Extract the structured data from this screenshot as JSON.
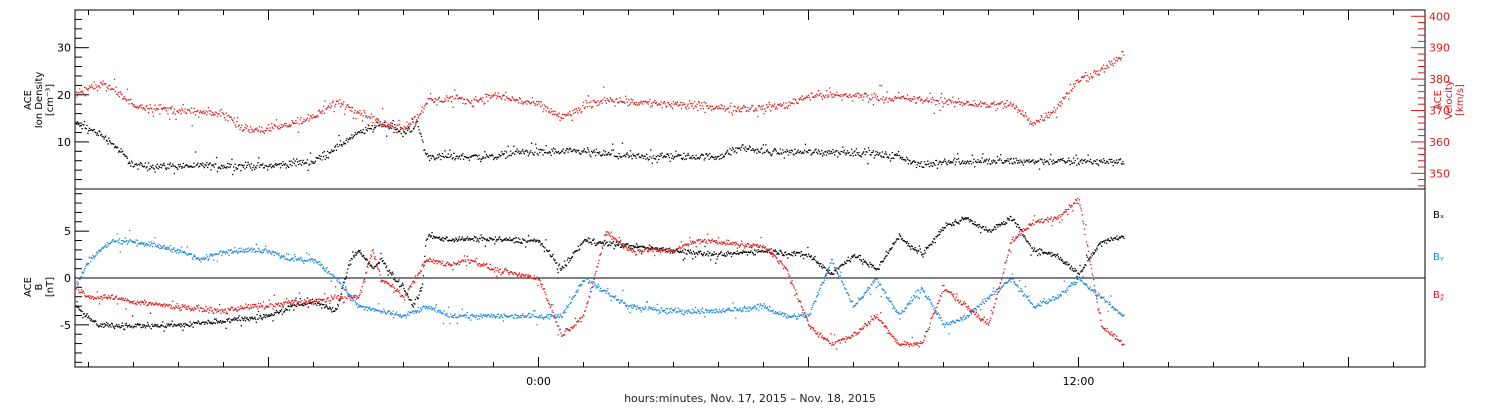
{
  "figure": {
    "x_axis_title": "hours:minutes, Nov. 17, 2015 – Nov. 18, 2015",
    "x_ticks": [
      {
        "label": "0:00",
        "hour": 0
      },
      {
        "label": "12:00",
        "hour": 12
      }
    ]
  },
  "colors": {
    "black": "#000000",
    "red": "#dd1a1a",
    "blue": "#1a86d9"
  },
  "chart_data": [
    {
      "type": "scatter",
      "panel": "top",
      "x_units": "hours relative to Nov. 18, 2015 00:00",
      "xlim": [
        -10.3,
        19.7
      ],
      "left_axis": {
        "label_lines": [
          "ACE",
          "Ion Density",
          "[cm⁻³]"
        ],
        "ylim": [
          0,
          38
        ],
        "ticks": [
          10,
          20,
          30
        ]
      },
      "right_axis": {
        "label_lines": [
          "ACE",
          "Velocity",
          "[km/s]"
        ],
        "ylim": [
          345,
          402
        ],
        "ticks": [
          350,
          360,
          370,
          380,
          390,
          400
        ]
      },
      "series": [
        {
          "color": "#000000",
          "axis": "left",
          "x": [
            -10.3,
            -9.8,
            -9.5,
            -9.0,
            -8.0,
            -7.0,
            -6.0,
            -5.0,
            -4.5,
            -4.0,
            -3.5,
            -3.0,
            -2.7,
            -2.5,
            -2.0,
            -1.0,
            -0.5,
            0.0,
            1.0,
            2.0,
            3.0,
            4.0,
            4.5,
            5.0,
            6.0,
            7.0,
            8.0,
            8.5,
            9.0,
            10.0,
            11.0,
            12.0,
            13.0
          ],
          "y": [
            14,
            12,
            10,
            5,
            5,
            5,
            5,
            6,
            9,
            12,
            14,
            12,
            14,
            7,
            7,
            7,
            8,
            8,
            8,
            7,
            7,
            7,
            9,
            8,
            8,
            8,
            7,
            5,
            6,
            6,
            6,
            6,
            6
          ]
        },
        {
          "color": "#dd1a1a",
          "axis": "right",
          "x": [
            -10.3,
            -9.7,
            -9.0,
            -8.0,
            -7.0,
            -6.5,
            -6.0,
            -5.0,
            -4.5,
            -4.0,
            -3.5,
            -3.0,
            -2.7,
            -2.5,
            -2.0,
            -1.5,
            -1.0,
            0.0,
            0.5,
            1.0,
            1.5,
            2.0,
            3.0,
            4.0,
            5.0,
            5.5,
            6.0,
            7.0,
            8.0,
            9.0,
            10.0,
            10.5,
            11.0,
            11.5,
            12.0,
            12.5,
            13.0
          ],
          "y": [
            375,
            379,
            372,
            370,
            369,
            364,
            364,
            368,
            373,
            370,
            366,
            365,
            368,
            373,
            374,
            373,
            375,
            372,
            368,
            371,
            374,
            373,
            372,
            371,
            371,
            372,
            375,
            375,
            374,
            373,
            372,
            372,
            366,
            371,
            380,
            383,
            388
          ]
        }
      ]
    },
    {
      "type": "scatter",
      "panel": "bottom",
      "x_units": "hours relative to Nov. 18, 2015 00:00",
      "xlim": [
        -10.3,
        19.7
      ],
      "left_axis": {
        "label_lines": [
          "ACE",
          "B",
          "[nT]"
        ],
        "ylim": [
          -9.5,
          9.5
        ],
        "ticks": [
          -5,
          0,
          5
        ]
      },
      "zero_line": true,
      "series": [
        {
          "name": "Bₓ",
          "color": "#000000",
          "x": [
            -10.3,
            -9.8,
            -9.0,
            -8.0,
            -7.0,
            -6.0,
            -5.5,
            -5.0,
            -4.5,
            -4.2,
            -4.0,
            -3.7,
            -3.5,
            -3.2,
            -3.0,
            -2.8,
            -2.6,
            -2.5,
            -2.0,
            -1.0,
            0.0,
            0.5,
            1.0,
            2.0,
            3.0,
            4.0,
            5.0,
            6.0,
            6.5,
            7.0,
            7.5,
            8.0,
            8.5,
            9.0,
            9.5,
            10.0,
            10.5,
            11.0,
            11.5,
            12.0,
            12.5,
            13.0
          ],
          "y": [
            -3,
            -5,
            -5,
            -5,
            -4.5,
            -4,
            -3,
            -2.5,
            -3.5,
            2,
            3,
            1,
            2,
            0,
            -1,
            -3,
            -1,
            4.5,
            4.2,
            4.2,
            4.0,
            1.0,
            4.0,
            3.5,
            3.0,
            2.5,
            3.0,
            2.5,
            0.5,
            2.5,
            1.0,
            4.5,
            2.5,
            5.5,
            6.5,
            5.0,
            6.5,
            3.0,
            2.5,
            0.5,
            4.0,
            4.5
          ]
        },
        {
          "name": "Bᵧ",
          "color": "#1a86d9",
          "x": [
            -10.3,
            -10.0,
            -9.5,
            -9.0,
            -8.0,
            -7.5,
            -7.0,
            -6.0,
            -5.5,
            -5.0,
            -4.5,
            -4.0,
            -3.5,
            -3.0,
            -2.5,
            -2.0,
            -1.0,
            0.0,
            0.5,
            1.0,
            2.0,
            3.0,
            4.0,
            5.0,
            5.5,
            6.0,
            6.5,
            7.0,
            7.5,
            8.0,
            8.5,
            9.0,
            9.5,
            10.0,
            10.5,
            11.0,
            11.5,
            12.0,
            12.5,
            13.0
          ],
          "y": [
            -1,
            2,
            4,
            4,
            3,
            2,
            3,
            3,
            2,
            2,
            0,
            -3,
            -3.5,
            -4,
            -3,
            -4,
            -4,
            -4,
            -4,
            0,
            -3,
            -3.5,
            -3.5,
            -3,
            -4,
            -4,
            2,
            -3,
            0,
            -4,
            -1,
            -5,
            -4,
            -2,
            0,
            -3,
            -2,
            0,
            -2,
            -4
          ]
        },
        {
          "name": "B𝓏",
          "color": "#dd1a1a",
          "x": [
            -10.3,
            -10.0,
            -9.5,
            -9.0,
            -8.0,
            -7.0,
            -6.5,
            -6.0,
            -5.5,
            -5.0,
            -4.5,
            -4.0,
            -3.7,
            -3.5,
            -3.0,
            -2.5,
            -2.0,
            -1.5,
            -1.0,
            0.0,
            0.5,
            1.0,
            1.5,
            2.0,
            3.0,
            3.5,
            4.0,
            4.5,
            5.0,
            5.5,
            6.0,
            6.5,
            7.0,
            7.5,
            8.0,
            8.5,
            9.0,
            9.5,
            10.0,
            10.5,
            11.0,
            11.5,
            12.0,
            12.5,
            13.0
          ],
          "y": [
            -1,
            -2,
            -2,
            -2.5,
            -3,
            -3.5,
            -3,
            -3,
            -2.5,
            -2.5,
            -2,
            -2,
            3,
            0,
            -2,
            2,
            1.5,
            2,
            1,
            0,
            -6,
            -4,
            5,
            3,
            3,
            4,
            4,
            3.5,
            3.5,
            1,
            -5,
            -7,
            -6,
            -4,
            -7,
            -7,
            -1,
            -3,
            -5,
            4,
            6,
            6.5,
            8.5,
            -5,
            -7
          ]
        }
      ]
    }
  ]
}
